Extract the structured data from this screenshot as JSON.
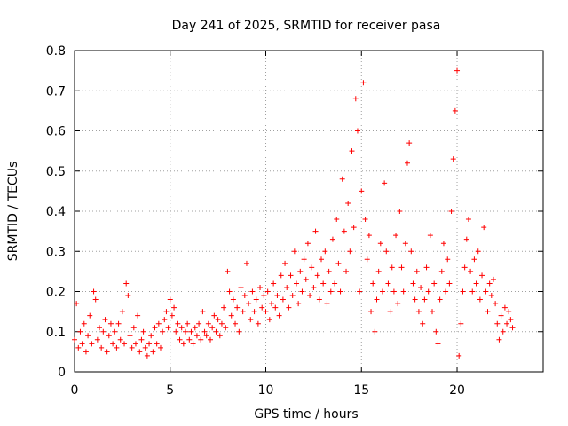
{
  "chart_data": {
    "type": "scatter",
    "title": "Day 241 of 2025, SRMTID for receiver pasa",
    "xlabel": "GPS time / hours",
    "ylabel": "SRMTID / TECUs",
    "xlim": [
      0,
      24.5
    ],
    "ylim": [
      0,
      0.8
    ],
    "xticks": [
      0,
      5,
      10,
      15,
      20
    ],
    "xtick_labels": [
      "0",
      "5",
      "10",
      "15",
      "20"
    ],
    "yticks": [
      0,
      0.1,
      0.2,
      0.3,
      0.4,
      0.5,
      0.6,
      0.7,
      0.8
    ],
    "ytick_labels": [
      "0",
      "0.1",
      "0.2",
      "0.3",
      "0.4",
      "0.5",
      "0.6",
      "0.7",
      "0.8"
    ],
    "grid": true,
    "marker": "+",
    "color": "#ff0000",
    "series": [
      {
        "name": "SRMTID",
        "points": [
          [
            0.0,
            0.08
          ],
          [
            0.1,
            0.17
          ],
          [
            0.2,
            0.06
          ],
          [
            0.3,
            0.1
          ],
          [
            0.4,
            0.07
          ],
          [
            0.5,
            0.12
          ],
          [
            0.6,
            0.05
          ],
          [
            0.7,
            0.09
          ],
          [
            0.8,
            0.14
          ],
          [
            0.9,
            0.07
          ],
          [
            1.0,
            0.2
          ],
          [
            1.1,
            0.18
          ],
          [
            1.2,
            0.08
          ],
          [
            1.3,
            0.11
          ],
          [
            1.4,
            0.06
          ],
          [
            1.5,
            0.1
          ],
          [
            1.6,
            0.13
          ],
          [
            1.7,
            0.05
          ],
          [
            1.8,
            0.09
          ],
          [
            1.9,
            0.12
          ],
          [
            2.0,
            0.07
          ],
          [
            2.1,
            0.1
          ],
          [
            2.2,
            0.06
          ],
          [
            2.3,
            0.12
          ],
          [
            2.4,
            0.08
          ],
          [
            2.5,
            0.15
          ],
          [
            2.6,
            0.07
          ],
          [
            2.7,
            0.22
          ],
          [
            2.8,
            0.19
          ],
          [
            2.9,
            0.09
          ],
          [
            3.0,
            0.06
          ],
          [
            3.1,
            0.11
          ],
          [
            3.2,
            0.07
          ],
          [
            3.3,
            0.14
          ],
          [
            3.4,
            0.05
          ],
          [
            3.5,
            0.08
          ],
          [
            3.6,
            0.1
          ],
          [
            3.7,
            0.06
          ],
          [
            3.8,
            0.04
          ],
          [
            3.9,
            0.07
          ],
          [
            4.0,
            0.09
          ],
          [
            4.1,
            0.05
          ],
          [
            4.2,
            0.11
          ],
          [
            4.3,
            0.07
          ],
          [
            4.4,
            0.12
          ],
          [
            4.5,
            0.06
          ],
          [
            4.6,
            0.1
          ],
          [
            4.7,
            0.13
          ],
          [
            4.8,
            0.15
          ],
          [
            4.9,
            0.11
          ],
          [
            5.0,
            0.18
          ],
          [
            5.1,
            0.14
          ],
          [
            5.2,
            0.16
          ],
          [
            5.3,
            0.1
          ],
          [
            5.4,
            0.12
          ],
          [
            5.5,
            0.08
          ],
          [
            5.6,
            0.11
          ],
          [
            5.7,
            0.07
          ],
          [
            5.8,
            0.1
          ],
          [
            5.9,
            0.12
          ],
          [
            6.0,
            0.08
          ],
          [
            6.1,
            0.1
          ],
          [
            6.2,
            0.07
          ],
          [
            6.3,
            0.11
          ],
          [
            6.4,
            0.09
          ],
          [
            6.5,
            0.12
          ],
          [
            6.6,
            0.08
          ],
          [
            6.7,
            0.15
          ],
          [
            6.8,
            0.1
          ],
          [
            6.9,
            0.09
          ],
          [
            7.0,
            0.12
          ],
          [
            7.1,
            0.08
          ],
          [
            7.2,
            0.11
          ],
          [
            7.3,
            0.14
          ],
          [
            7.4,
            0.1
          ],
          [
            7.5,
            0.13
          ],
          [
            7.6,
            0.09
          ],
          [
            7.7,
            0.12
          ],
          [
            7.8,
            0.16
          ],
          [
            7.9,
            0.11
          ],
          [
            8.0,
            0.25
          ],
          [
            8.1,
            0.2
          ],
          [
            8.2,
            0.14
          ],
          [
            8.3,
            0.18
          ],
          [
            8.4,
            0.12
          ],
          [
            8.5,
            0.16
          ],
          [
            8.6,
            0.1
          ],
          [
            8.7,
            0.21
          ],
          [
            8.8,
            0.15
          ],
          [
            8.9,
            0.19
          ],
          [
            9.0,
            0.27
          ],
          [
            9.1,
            0.17
          ],
          [
            9.2,
            0.13
          ],
          [
            9.3,
            0.2
          ],
          [
            9.4,
            0.15
          ],
          [
            9.5,
            0.18
          ],
          [
            9.6,
            0.12
          ],
          [
            9.7,
            0.21
          ],
          [
            9.8,
            0.16
          ],
          [
            9.9,
            0.19
          ],
          [
            10.0,
            0.15
          ],
          [
            10.1,
            0.2
          ],
          [
            10.2,
            0.13
          ],
          [
            10.3,
            0.17
          ],
          [
            10.4,
            0.22
          ],
          [
            10.5,
            0.16
          ],
          [
            10.6,
            0.19
          ],
          [
            10.7,
            0.14
          ],
          [
            10.8,
            0.24
          ],
          [
            10.9,
            0.18
          ],
          [
            11.0,
            0.27
          ],
          [
            11.1,
            0.21
          ],
          [
            11.2,
            0.16
          ],
          [
            11.3,
            0.24
          ],
          [
            11.4,
            0.19
          ],
          [
            11.5,
            0.3
          ],
          [
            11.6,
            0.22
          ],
          [
            11.7,
            0.17
          ],
          [
            11.8,
            0.25
          ],
          [
            11.9,
            0.2
          ],
          [
            12.0,
            0.28
          ],
          [
            12.1,
            0.23
          ],
          [
            12.2,
            0.32
          ],
          [
            12.3,
            0.19
          ],
          [
            12.4,
            0.26
          ],
          [
            12.5,
            0.21
          ],
          [
            12.6,
            0.35
          ],
          [
            12.7,
            0.24
          ],
          [
            12.8,
            0.18
          ],
          [
            12.9,
            0.28
          ],
          [
            13.0,
            0.22
          ],
          [
            13.1,
            0.3
          ],
          [
            13.2,
            0.17
          ],
          [
            13.3,
            0.25
          ],
          [
            13.4,
            0.2
          ],
          [
            13.5,
            0.33
          ],
          [
            13.6,
            0.22
          ],
          [
            13.7,
            0.38
          ],
          [
            13.8,
            0.27
          ],
          [
            13.9,
            0.2
          ],
          [
            14.0,
            0.48
          ],
          [
            14.1,
            0.35
          ],
          [
            14.2,
            0.25
          ],
          [
            14.3,
            0.42
          ],
          [
            14.4,
            0.3
          ],
          [
            14.5,
            0.55
          ],
          [
            14.6,
            0.36
          ],
          [
            14.7,
            0.68
          ],
          [
            14.8,
            0.6
          ],
          [
            14.9,
            0.2
          ],
          [
            15.0,
            0.45
          ],
          [
            15.1,
            0.72
          ],
          [
            15.2,
            0.38
          ],
          [
            15.3,
            0.28
          ],
          [
            15.4,
            0.34
          ],
          [
            15.5,
            0.15
          ],
          [
            15.6,
            0.22
          ],
          [
            15.7,
            0.1
          ],
          [
            15.8,
            0.18
          ],
          [
            15.9,
            0.25
          ],
          [
            16.0,
            0.32
          ],
          [
            16.1,
            0.2
          ],
          [
            16.2,
            0.47
          ],
          [
            16.3,
            0.3
          ],
          [
            16.4,
            0.22
          ],
          [
            16.5,
            0.15
          ],
          [
            16.6,
            0.26
          ],
          [
            16.7,
            0.2
          ],
          [
            16.8,
            0.34
          ],
          [
            16.9,
            0.17
          ],
          [
            17.0,
            0.4
          ],
          [
            17.1,
            0.26
          ],
          [
            17.2,
            0.2
          ],
          [
            17.3,
            0.32
          ],
          [
            17.4,
            0.52
          ],
          [
            17.5,
            0.57
          ],
          [
            17.6,
            0.3
          ],
          [
            17.7,
            0.22
          ],
          [
            17.8,
            0.18
          ],
          [
            17.9,
            0.25
          ],
          [
            18.0,
            0.15
          ],
          [
            18.1,
            0.21
          ],
          [
            18.2,
            0.12
          ],
          [
            18.3,
            0.18
          ],
          [
            18.4,
            0.26
          ],
          [
            18.5,
            0.2
          ],
          [
            18.6,
            0.34
          ],
          [
            18.7,
            0.15
          ],
          [
            18.8,
            0.22
          ],
          [
            18.9,
            0.1
          ],
          [
            19.0,
            0.07
          ],
          [
            19.1,
            0.18
          ],
          [
            19.2,
            0.25
          ],
          [
            19.3,
            0.32
          ],
          [
            19.4,
            0.2
          ],
          [
            19.5,
            0.28
          ],
          [
            19.6,
            0.22
          ],
          [
            19.7,
            0.4
          ],
          [
            19.8,
            0.53
          ],
          [
            19.9,
            0.65
          ],
          [
            20.0,
            0.75
          ],
          [
            20.1,
            0.04
          ],
          [
            20.2,
            0.12
          ],
          [
            20.3,
            0.2
          ],
          [
            20.4,
            0.26
          ],
          [
            20.5,
            0.33
          ],
          [
            20.6,
            0.38
          ],
          [
            20.7,
            0.25
          ],
          [
            20.8,
            0.2
          ],
          [
            20.9,
            0.28
          ],
          [
            21.0,
            0.22
          ],
          [
            21.1,
            0.3
          ],
          [
            21.2,
            0.18
          ],
          [
            21.3,
            0.24
          ],
          [
            21.4,
            0.36
          ],
          [
            21.5,
            0.2
          ],
          [
            21.6,
            0.15
          ],
          [
            21.7,
            0.22
          ],
          [
            21.8,
            0.19
          ],
          [
            21.9,
            0.23
          ],
          [
            22.0,
            0.17
          ],
          [
            22.1,
            0.12
          ],
          [
            22.2,
            0.08
          ],
          [
            22.3,
            0.14
          ],
          [
            22.4,
            0.1
          ],
          [
            22.5,
            0.16
          ],
          [
            22.6,
            0.12
          ],
          [
            22.7,
            0.15
          ],
          [
            22.8,
            0.13
          ],
          [
            22.9,
            0.11
          ]
        ]
      }
    ]
  }
}
